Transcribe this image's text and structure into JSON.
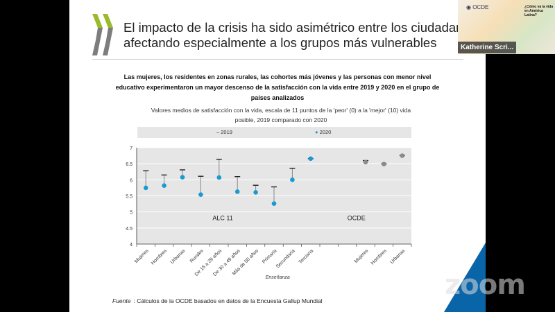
{
  "slide": {
    "title_line1": "El impacto de la crisis ha sido asimétrico entre los ciudadanos,",
    "title_line2": "afectando especialmente a los grupos más vulnerables",
    "headline": "Las mujeres, los residentes en zonas rurales, las cohortes más jóvenes y las personas con menor nivel educativo experimentaron un mayor descenso de la satisfacción con la vida entre 2019 y 2020 en el grupo de países analizados",
    "source_label": "Fuente",
    "source_text": ": Cálculos de la OCDE basados en datos de la Encuesta Gallup Mundial",
    "accent_color": "#0a64a8"
  },
  "video": {
    "participant": "Katherine Scri...",
    "logo_text": "OCDE",
    "slide_title": "¿Cómo va la vida en América Latina?"
  },
  "zoom_watermark": "zoom",
  "chart_data": {
    "type": "scatter",
    "title": "Valores medios de satisfacción con la vida, escala de 11 puntos de la 'peor' (0) a la 'mejor' (10) vida posible, 2019 comparado con 2020",
    "legend": {
      "position": "top",
      "items": [
        "2019",
        "2020"
      ]
    },
    "ylim": [
      4,
      7
    ],
    "yticks": [
      "4",
      "4.5",
      "5",
      "5.5",
      "6",
      "6.5",
      "7"
    ],
    "grid": true,
    "group_labels": [
      "ALC 11",
      "OCDE"
    ],
    "xlabel_group": "Enseñanza",
    "categories": [
      "Mujeres",
      "Hombres",
      "Urbanas",
      "Rurales",
      "De 15 a 29 años",
      "De 30 a 49 años",
      "Más de 50 años",
      "Primaria",
      "Secundaria",
      "Terciaria",
      "",
      "",
      "Mujeres",
      "Hombres",
      "Urbanas"
    ],
    "series": [
      {
        "name": "2019",
        "values": [
          6.28,
          6.15,
          6.31,
          6.11,
          6.64,
          6.1,
          5.83,
          5.78,
          6.36,
          6.66,
          null,
          null,
          6.6,
          6.5,
          6.76
        ]
      },
      {
        "name": "2020",
        "values": [
          5.75,
          5.82,
          6.08,
          5.54,
          6.07,
          5.63,
          5.61,
          5.26,
          6.0,
          6.66,
          null,
          null,
          6.55,
          6.49,
          6.75
        ]
      }
    ],
    "colors": {
      "alc_2020": "#1a9bd0",
      "ocde_2020": "#8a8a8a",
      "marker_2019": "#222222"
    }
  }
}
